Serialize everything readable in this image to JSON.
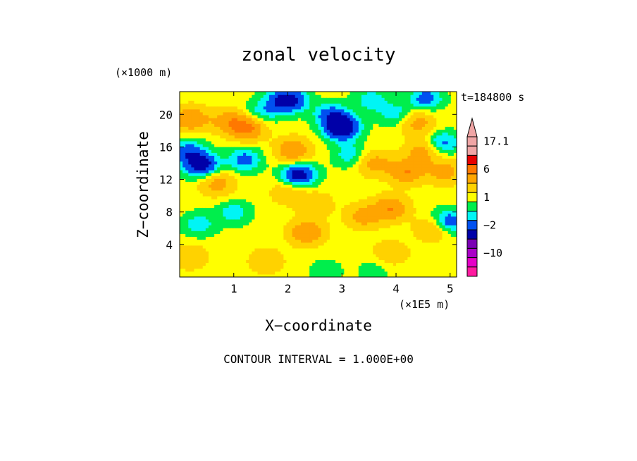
{
  "chart_data": {
    "type": "heatmap",
    "title": "zonal velocity",
    "xlabel": "X−coordinate",
    "ylabel": "Z−coordinate",
    "x_unit": "(×1E5 m)",
    "y_unit": "(×1000 m)",
    "time_label": "t=184800 s",
    "footer": "CONTOUR INTERVAL = 1.000E+00",
    "xlim": [
      0,
      5.12
    ],
    "ylim": [
      0,
      22.8
    ],
    "x_ticks": [
      {
        "value": 1,
        "label": "1"
      },
      {
        "value": 2,
        "label": "2"
      },
      {
        "value": 3,
        "label": "3"
      },
      {
        "value": 4,
        "label": "4"
      },
      {
        "value": 5,
        "label": "5"
      }
    ],
    "y_ticks": [
      {
        "value": 4,
        "label": "4"
      },
      {
        "value": 8,
        "label": "8"
      },
      {
        "value": 12,
        "label": "12"
      },
      {
        "value": 16,
        "label": "16"
      },
      {
        "value": 20,
        "label": "20"
      }
    ],
    "grid": false,
    "colorbar": {
      "placement": "right",
      "levels_top_to_bottom": [
        {
          "color": "#f0a5a5",
          "value": 17.1
        },
        {
          "color": "#f0a5a5"
        },
        {
          "color": "#e60000"
        },
        {
          "color": "#ff7800",
          "value": 6
        },
        {
          "color": "#ffa500"
        },
        {
          "color": "#ffd200"
        },
        {
          "color": "#ffff00",
          "value": 1
        },
        {
          "color": "#00ee4c"
        },
        {
          "color": "#00f5f5"
        },
        {
          "color": "#0050f0",
          "value": -2
        },
        {
          "color": "#0000a8"
        },
        {
          "color": "#7a00b4"
        },
        {
          "color": "#aa00c8",
          "value": -10
        },
        {
          "color": "#e600c8"
        },
        {
          "color": "#ff1aa0"
        }
      ],
      "tick_labels": [
        {
          "label": "17.1",
          "value": 17.1
        },
        {
          "label": "6",
          "value": 6
        },
        {
          "label": "1",
          "value": 1
        },
        {
          "label": "−2",
          "value": -2
        },
        {
          "label": "−10",
          "value": -10
        }
      ]
    },
    "field_features": [
      {
        "x": 0.4,
        "z": 13.8,
        "value": -5
      },
      {
        "x": 0.15,
        "z": 15.5,
        "value": -3
      },
      {
        "x": 1.2,
        "z": 14.5,
        "value": -3
      },
      {
        "x": 1.45,
        "z": 20.0,
        "value": -2
      },
      {
        "x": 1.8,
        "z": 21.5,
        "value": -2
      },
      {
        "x": 2.05,
        "z": 21.8,
        "value": -4
      },
      {
        "x": 2.2,
        "z": 12.6,
        "value": -5
      },
      {
        "x": 2.8,
        "z": 20.0,
        "value": -3
      },
      {
        "x": 3.0,
        "z": 18.4,
        "value": -6
      },
      {
        "x": 3.15,
        "z": 15.0,
        "value": -2
      },
      {
        "x": 3.55,
        "z": 21.8,
        "value": -2
      },
      {
        "x": 4.0,
        "z": 20.0,
        "value": -2
      },
      {
        "x": 4.55,
        "z": 22.0,
        "value": -3
      },
      {
        "x": 4.85,
        "z": 16.5,
        "value": -3
      },
      {
        "x": 4.95,
        "z": 6.8,
        "value": -4
      },
      {
        "x": 0.35,
        "z": 6.5,
        "value": -2
      },
      {
        "x": 1.0,
        "z": 8.0,
        "value": -2
      },
      {
        "x": 0.2,
        "z": 19.5,
        "value": 4
      },
      {
        "x": 0.9,
        "z": 19.2,
        "value": 3
      },
      {
        "x": 1.25,
        "z": 18.4,
        "value": 5
      },
      {
        "x": 2.1,
        "z": 15.6,
        "value": 4
      },
      {
        "x": 0.7,
        "z": 11.5,
        "value": 3
      },
      {
        "x": 2.35,
        "z": 5.5,
        "value": 4
      },
      {
        "x": 2.5,
        "z": 9.0,
        "value": 2
      },
      {
        "x": 3.6,
        "z": 14.0,
        "value": 3
      },
      {
        "x": 4.2,
        "z": 13.0,
        "value": 4
      },
      {
        "x": 4.5,
        "z": 15.5,
        "value": 3
      },
      {
        "x": 4.9,
        "z": 13.0,
        "value": 3
      },
      {
        "x": 3.4,
        "z": 7.5,
        "value": 3
      },
      {
        "x": 3.9,
        "z": 8.5,
        "value": 4
      },
      {
        "x": 4.7,
        "z": 6.0,
        "value": 3
      },
      {
        "x": 4.4,
        "z": 19.0,
        "value": 3
      },
      {
        "x": 2.0,
        "z": 10.5,
        "value": 2
      },
      {
        "x": 0.2,
        "z": 2.5,
        "value": 2
      },
      {
        "x": 1.6,
        "z": 2.0,
        "value": 2
      },
      {
        "x": 3.9,
        "z": 3.0,
        "value": 2
      },
      {
        "x": 0.6,
        "z": 4.0,
        "value": 0
      },
      {
        "x": 1.9,
        "z": 3.5,
        "value": 0
      },
      {
        "x": 2.8,
        "z": 4.5,
        "value": 0
      },
      {
        "x": 3.4,
        "z": 3.0,
        "value": 0
      },
      {
        "x": 4.8,
        "z": 1.2,
        "value": 0
      },
      {
        "x": 2.5,
        "z": 11.8,
        "value": 0
      },
      {
        "x": 3.3,
        "z": 11.0,
        "value": 0
      },
      {
        "x": 1.6,
        "z": 9.0,
        "value": 0
      },
      {
        "x": 4.5,
        "z": 10.0,
        "value": 0
      },
      {
        "x": 3.6,
        "z": 0.8,
        "value": -1
      },
      {
        "x": 2.7,
        "z": 0.8,
        "value": -1
      }
    ]
  }
}
